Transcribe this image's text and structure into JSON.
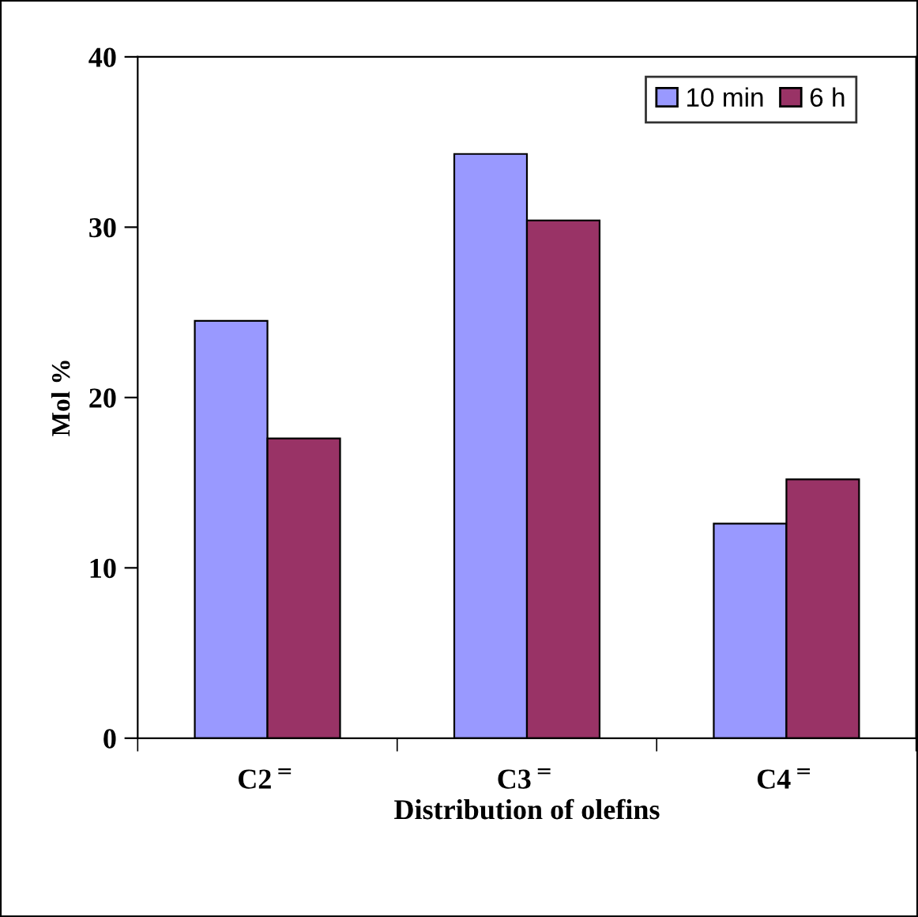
{
  "chart_data": {
    "type": "bar",
    "xlabel": "Distribution of olefins",
    "ylabel": "Mol %",
    "categories": [
      "C2$^{=}$",
      "C3$^{=}$",
      "C4$^{=}$"
    ],
    "series": [
      {
        "name": "10 min",
        "color": "#9999ff",
        "values": [
          24.5,
          34.3,
          12.6
        ]
      },
      {
        "name": "6 h",
        "color": "#993366",
        "values": [
          17.6,
          30.4,
          15.2
        ]
      }
    ],
    "ylim": [
      0,
      40
    ],
    "yticks": [
      0,
      10,
      20,
      30,
      40
    ],
    "grid": false,
    "legend": "top right"
  }
}
